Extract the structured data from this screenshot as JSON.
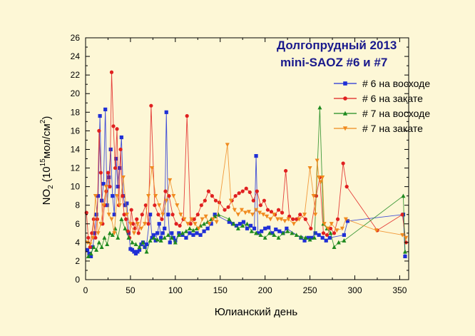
{
  "chart_data": {
    "type": "scatter",
    "title_line1": "Долгопрудный 2013",
    "title_line2": "mini-SAOZ #6 и #7",
    "xlabel": "Юлианский день",
    "ylabel": {
      "base": "NO",
      "sub": "2",
      "open": " (10",
      "sup1": "15",
      "mid": "мол/см",
      "sup2": "2",
      "close": ")"
    },
    "xlim": [
      0,
      360
    ],
    "ylim": [
      0,
      26
    ],
    "x_ticks": [
      "0",
      "50",
      "100",
      "150",
      "200",
      "250",
      "300",
      "350"
    ],
    "y_ticks": [
      "0",
      "2",
      "4",
      "6",
      "8",
      "10",
      "12",
      "14",
      "16",
      "18",
      "20",
      "22",
      "24",
      "26"
    ],
    "legend_placement": "top-right",
    "series": [
      {
        "name": "# 6 на восходе",
        "color": "#1f2fd6",
        "marker": "square",
        "x": [
          2,
          4,
          6,
          8,
          10,
          12,
          14,
          16,
          18,
          20,
          22,
          24,
          26,
          28,
          30,
          32,
          34,
          36,
          38,
          40,
          42,
          44,
          46,
          48,
          50,
          52,
          54,
          56,
          58,
          60,
          62,
          64,
          66,
          68,
          72,
          74,
          76,
          78,
          80,
          82,
          84,
          86,
          88,
          90,
          92,
          94,
          96,
          98,
          100,
          104,
          108,
          112,
          116,
          120,
          124,
          128,
          132,
          136,
          140,
          144,
          160,
          164,
          168,
          172,
          176,
          180,
          184,
          188,
          190,
          192,
          196,
          200,
          204,
          208,
          212,
          216,
          220,
          224,
          240,
          244,
          248,
          252,
          256,
          260,
          264,
          268,
          272,
          288,
          292,
          354,
          356
        ],
        "y": [
          3.2,
          2.8,
          2.5,
          3.5,
          5,
          7,
          9,
          17.6,
          8.5,
          10.3,
          18.3,
          8,
          11,
          14,
          9,
          7,
          13,
          10,
          12,
          15.3,
          9,
          8,
          8.2,
          5,
          3.3,
          3.2,
          3,
          2.8,
          3,
          3.2,
          3.8,
          4,
          3.5,
          3.8,
          7,
          4.5,
          4.8,
          4.2,
          5,
          6,
          4.5,
          5,
          5.5,
          18,
          7,
          4,
          5,
          4.5,
          4.2,
          5,
          4.8,
          4.5,
          5,
          4.8,
          5,
          4.8,
          5.2,
          5.5,
          6,
          7,
          6.2,
          6,
          5.8,
          6,
          6.2,
          5.5,
          5.8,
          5.5,
          13.3,
          5,
          5.2,
          5.5,
          5.6,
          5,
          5.4,
          5.2,
          5,
          5.5,
          4.5,
          4.2,
          4.5,
          4.5,
          5,
          4.8,
          4.5,
          4.2,
          4.5,
          4.8,
          6.3,
          7,
          2.5
        ]
      },
      {
        "name": "# 6 на закате",
        "color": "#e02020",
        "marker": "circle",
        "x": [
          1,
          3,
          5,
          7,
          9,
          11,
          13,
          15,
          17,
          19,
          21,
          23,
          25,
          27,
          29,
          31,
          33,
          35,
          37,
          39,
          41,
          43,
          45,
          47,
          49,
          51,
          53,
          55,
          57,
          59,
          63,
          67,
          70,
          73,
          77,
          81,
          85,
          89,
          93,
          97,
          101,
          105,
          109,
          113,
          117,
          121,
          125,
          129,
          133,
          137,
          141,
          145,
          149,
          155,
          159,
          163,
          167,
          171,
          175,
          179,
          183,
          187,
          191,
          195,
          199,
          203,
          207,
          211,
          215,
          219,
          223,
          227,
          231,
          235,
          239,
          245,
          251,
          257,
          261,
          265,
          269,
          273,
          277,
          281,
          287,
          291,
          325,
          353,
          357
        ],
        "y": [
          7.2,
          4.5,
          3.5,
          5,
          6.5,
          4.5,
          6.5,
          16,
          11.5,
          6,
          8,
          9.5,
          11.5,
          10,
          22.3,
          16.5,
          12,
          16.2,
          8,
          14,
          9,
          7,
          6.5,
          5.2,
          4.5,
          7.5,
          6,
          5.5,
          6.5,
          5,
          7,
          8,
          6,
          18.7,
          8,
          7,
          6.5,
          9.5,
          9,
          7,
          6,
          5.8,
          6.5,
          17.6,
          6,
          6.5,
          7,
          8,
          8.5,
          9.5,
          9,
          8.5,
          8.3,
          7.5,
          7.8,
          8.5,
          9,
          9.3,
          9.5,
          9.8,
          9.4,
          8.5,
          9.5,
          8,
          8.5,
          7.5,
          7.3,
          7,
          7.5,
          7.2,
          11.7,
          6.8,
          6.5,
          6.5,
          7,
          6.5,
          5.5,
          9,
          11,
          5,
          4.8,
          5.5,
          5,
          6.5,
          12.5,
          10,
          5.3,
          7,
          4
        ]
      },
      {
        "name": "# 7 на восходе",
        "color": "#1e8a1e",
        "marker": "triangle-up",
        "x": [
          3,
          6,
          9,
          12,
          15,
          18,
          21,
          24,
          27,
          30,
          33,
          36,
          40,
          44,
          48,
          52,
          56,
          60,
          64,
          68,
          72,
          76,
          80,
          84,
          88,
          92,
          96,
          100,
          104,
          108,
          112,
          116,
          120,
          124,
          128,
          132,
          136,
          140,
          144,
          148,
          160,
          165,
          170,
          175,
          180,
          185,
          190,
          195,
          200,
          205,
          210,
          215,
          220,
          225,
          230,
          235,
          240,
          245,
          250,
          255,
          261,
          265,
          269,
          273,
          277,
          282,
          288,
          354,
          356
        ],
        "y": [
          2.5,
          2.8,
          3.5,
          3.2,
          4,
          3.5,
          4.5,
          3.8,
          5,
          4.8,
          5.5,
          4.5,
          6.5,
          5.5,
          4.5,
          4,
          3.8,
          3.5,
          4,
          3,
          4.2,
          4.5,
          4.3,
          4.2,
          4.5,
          4.8,
          4.5,
          4,
          4.8,
          5,
          5.2,
          5.5,
          5.3,
          5.5,
          5.8,
          6,
          6.2,
          6.5,
          6.8,
          7,
          6.5,
          6,
          5.5,
          5.8,
          6,
          5.2,
          5,
          4.8,
          4.5,
          5,
          4.8,
          4.5,
          5,
          5.2,
          5,
          4.8,
          4.6,
          4.5,
          4.3,
          4.5,
          18.5,
          6,
          5.5,
          5,
          3.5,
          4,
          4.2,
          9,
          3
        ]
      },
      {
        "name": "# 7 на закате",
        "color": "#f08a1e",
        "marker": "triangle-down",
        "x": [
          2,
          5,
          8,
          11,
          14,
          17,
          20,
          23,
          26,
          29,
          32,
          35,
          38,
          42,
          46,
          50,
          54,
          58,
          62,
          66,
          70,
          74,
          78,
          82,
          86,
          90,
          94,
          98,
          102,
          106,
          110,
          114,
          118,
          122,
          126,
          130,
          134,
          138,
          142,
          146,
          158,
          162,
          166,
          170,
          174,
          178,
          182,
          186,
          190,
          194,
          198,
          202,
          206,
          210,
          214,
          218,
          222,
          226,
          232,
          238,
          244,
          250,
          254,
          256,
          258,
          260,
          262,
          264,
          266,
          270,
          274,
          280,
          286,
          290,
          324,
          353,
          357
        ],
        "y": [
          4,
          3.8,
          4.5,
          9,
          5,
          6,
          8,
          10,
          7,
          6.5,
          5,
          9,
          8,
          11,
          7,
          6,
          5,
          6,
          5.5,
          6,
          9,
          12,
          9,
          8,
          7,
          8.5,
          10.7,
          9,
          8,
          7,
          6.5,
          6,
          6.5,
          6,
          5.5,
          6.5,
          6.8,
          6,
          6.5,
          6.2,
          14.5,
          8.5,
          7.5,
          7,
          7.5,
          7.2,
          7.3,
          7,
          7.5,
          7.2,
          7,
          6.8,
          6.5,
          7,
          6.5,
          6.5,
          6.3,
          6.5,
          6,
          6.5,
          7,
          12,
          9,
          7,
          12.8,
          11,
          10.5,
          11,
          6,
          5.5,
          6,
          5.3,
          5.5,
          6.5,
          5.3,
          4.8,
          4.5
        ]
      }
    ]
  }
}
